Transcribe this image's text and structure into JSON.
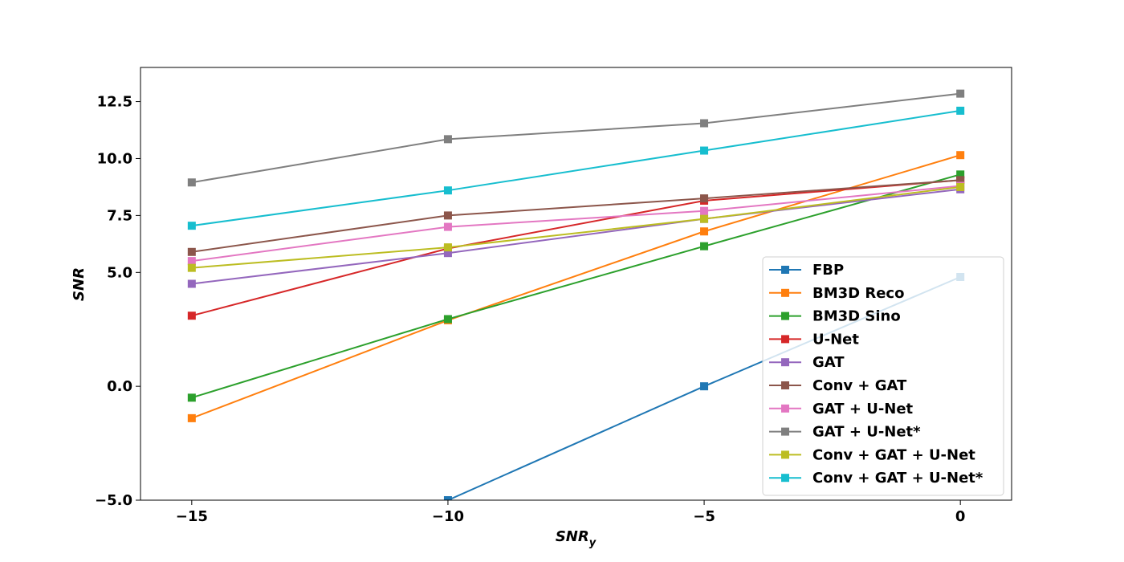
{
  "chart_data": {
    "type": "line",
    "xlabel": "SNR",
    "xlabel_sub": "y",
    "ylabel": "SNR",
    "xlim": [
      -16,
      1
    ],
    "ylim": [
      -5,
      14
    ],
    "x_ticks": [
      -15,
      -10,
      -5,
      0
    ],
    "x_tick_labels": [
      "−15",
      "−10",
      "−5",
      "0"
    ],
    "y_ticks": [
      -5.0,
      0.0,
      5.0,
      7.5,
      10.0,
      12.5
    ],
    "y_tick_labels": [
      "−5.0",
      "0.0",
      "5.0",
      "7.5",
      "10.0",
      "12.5"
    ],
    "grid": false,
    "legend_position": "lower-right",
    "x": [
      -15,
      -10,
      -5,
      0
    ],
    "series": [
      {
        "name": "FBP",
        "color": "#1f77b4",
        "values": [
          null,
          -5.0,
          0.0,
          4.8
        ]
      },
      {
        "name": "BM3D Reco",
        "color": "#ff7f0e",
        "values": [
          -1.4,
          2.9,
          6.8,
          10.15
        ]
      },
      {
        "name": "BM3D Sino",
        "color": "#2ca02c",
        "values": [
          -0.5,
          2.95,
          6.15,
          9.3
        ]
      },
      {
        "name": "U-Net",
        "color": "#d62728",
        "values": [
          3.1,
          6.05,
          8.15,
          9.05
        ]
      },
      {
        "name": "GAT",
        "color": "#9467bd",
        "values": [
          4.5,
          5.85,
          7.35,
          8.65
        ]
      },
      {
        "name": "Conv + GAT",
        "color": "#8c564b",
        "values": [
          5.9,
          7.5,
          8.25,
          9.05
        ]
      },
      {
        "name": "GAT + U-Net",
        "color": "#e377c2",
        "values": [
          5.5,
          7.0,
          7.7,
          8.8
        ]
      },
      {
        "name": "GAT + U-Net*",
        "color": "#7f7f7f",
        "values": [
          8.95,
          10.85,
          11.55,
          12.85
        ]
      },
      {
        "name": "Conv + GAT + U-Net",
        "color": "#bcbd22",
        "values": [
          5.2,
          6.1,
          7.35,
          8.75
        ]
      },
      {
        "name": "Conv + GAT + U-Net*",
        "color": "#17becf",
        "values": [
          7.05,
          8.6,
          10.35,
          12.1
        ]
      }
    ]
  }
}
